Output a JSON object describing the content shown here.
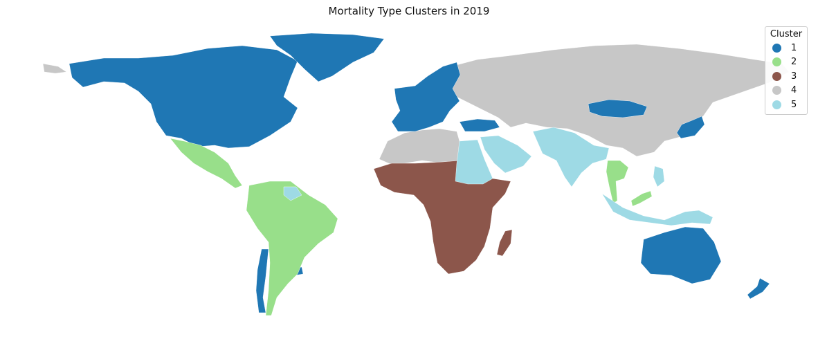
{
  "title": "Mortality Type Clusters in 2019",
  "legend": {
    "title": "Cluster",
    "items": [
      {
        "label": "1",
        "color": "#1f77b4"
      },
      {
        "label": "2",
        "color": "#98df8a"
      },
      {
        "label": "3",
        "color": "#8c564b"
      },
      {
        "label": "4",
        "color": "#c7c7c7"
      },
      {
        "label": "5",
        "color": "#9edae5"
      }
    ]
  },
  "map_data": {
    "type": "choropleth",
    "year": "2019",
    "regions": [
      {
        "name": "North America (Canada, USA)",
        "cluster": "1"
      },
      {
        "name": "Greenland",
        "cluster": "1"
      },
      {
        "name": "Western & Northern Europe",
        "cluster": "1"
      },
      {
        "name": "Turkey",
        "cluster": "1"
      },
      {
        "name": "Mongolia",
        "cluster": "1"
      },
      {
        "name": "Japan & Korea",
        "cluster": "1"
      },
      {
        "name": "Australia",
        "cluster": "1"
      },
      {
        "name": "New Zealand",
        "cluster": "1"
      },
      {
        "name": "Chile",
        "cluster": "1"
      },
      {
        "name": "Uruguay",
        "cluster": "1"
      },
      {
        "name": "Mexico & Central America",
        "cluster": "2"
      },
      {
        "name": "South America",
        "cluster": "2"
      },
      {
        "name": "Thailand & Cambodia",
        "cluster": "2"
      },
      {
        "name": "Malaysia",
        "cluster": "2"
      },
      {
        "name": "Sub-Saharan Africa",
        "cluster": "3"
      },
      {
        "name": "Madagascar",
        "cluster": "3"
      },
      {
        "name": "Russia",
        "cluster": "4"
      },
      {
        "name": "China & Central Asia",
        "cluster": "4"
      },
      {
        "name": "North Africa",
        "cluster": "4"
      },
      {
        "name": "Egypt & Sudan",
        "cluster": "5"
      },
      {
        "name": "Arabian Peninsula",
        "cluster": "5"
      },
      {
        "name": "South Asia",
        "cluster": "5"
      },
      {
        "name": "Southeast Asia & Indonesia",
        "cluster": "5"
      },
      {
        "name": "Guyana & Suriname",
        "cluster": "5"
      }
    ]
  }
}
